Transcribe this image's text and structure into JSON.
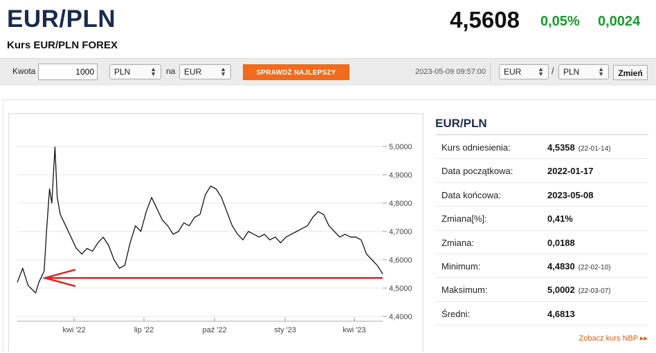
{
  "header": {
    "title": "EUR/PLN",
    "subtitle": "Kurs EUR/PLN FOREX",
    "price": "4,5608",
    "change_pct": "0,05%",
    "change_abs": "0,0024"
  },
  "toolbar": {
    "amount_label": "Kwota",
    "amount_value": "1000",
    "from_currency": "PLN",
    "na_label": "na",
    "to_currency": "EUR",
    "best_rate_button": "SPRAWDŹ NAJLEPSZY KURS",
    "timestamp": "2023-05-09 09:57:00",
    "pair_base": "EUR",
    "slash": "/",
    "pair_quote": "PLN",
    "change_button": "Zmień"
  },
  "stats": {
    "title": "EUR/PLN",
    "rows": [
      {
        "label": "Kurs odniesienia:",
        "value": "4,5358",
        "date": "(22-01-14)"
      },
      {
        "label": "Data początkowa:",
        "value": "2022-01-17",
        "date": ""
      },
      {
        "label": "Data końcowa:",
        "value": "2023-05-08",
        "date": ""
      },
      {
        "label": "Zmiana[%]:",
        "value": "0,41%",
        "date": ""
      },
      {
        "label": "Zmiana:",
        "value": "0,0188",
        "date": ""
      },
      {
        "label": "Minimum:",
        "value": "4,4830",
        "date": "(22-02-10)"
      },
      {
        "label": "Maksimum:",
        "value": "5,0002",
        "date": "(22-03-07)"
      },
      {
        "label": "Średni:",
        "value": "4,6813",
        "date": ""
      }
    ],
    "nbp_link": "Zobacz kurs NBP ▸▸"
  },
  "colors": {
    "title": "#1a2b4c",
    "positive": "#1a9a2a",
    "accent_button": "#f26a1b",
    "reference_line": "#e02020",
    "link": "#e05a10"
  },
  "chart_data": {
    "type": "line",
    "title": "",
    "xlabel": "",
    "ylabel": "",
    "ylim": [
      4.4,
      5.0
    ],
    "yticks": [
      "5,0000",
      "4,9000",
      "4,8000",
      "4,7000",
      "4,6000",
      "4,5000",
      "4,4000"
    ],
    "ytick_values": [
      5.0,
      4.9,
      4.8,
      4.7,
      4.6,
      4.5,
      4.4
    ],
    "xticks": [
      "kwi '22",
      "lip '22",
      "paź '22",
      "sty '23",
      "kwi '23"
    ],
    "xtick_dates": [
      "2022-04-01",
      "2022-07-01",
      "2022-10-01",
      "2023-01-01",
      "2023-04-01"
    ],
    "xlim_dates": [
      "2022-01-17",
      "2023-05-08"
    ],
    "reference_value": 4.5358,
    "series": [
      {
        "x": [
          "2022-01-17",
          "2022-01-24",
          "2022-01-31",
          "2022-02-07",
          "2022-02-10",
          "2022-02-14",
          "2022-02-21",
          "2022-02-24",
          "2022-02-28",
          "2022-03-03",
          "2022-03-07",
          "2022-03-10",
          "2022-03-14",
          "2022-03-21",
          "2022-03-28",
          "2022-04-04",
          "2022-04-11",
          "2022-04-18",
          "2022-04-25",
          "2022-05-02",
          "2022-05-09",
          "2022-05-16",
          "2022-05-23",
          "2022-05-30",
          "2022-06-06",
          "2022-06-13",
          "2022-06-20",
          "2022-06-27",
          "2022-07-04",
          "2022-07-11",
          "2022-07-18",
          "2022-07-25",
          "2022-08-01",
          "2022-08-08",
          "2022-08-15",
          "2022-08-22",
          "2022-08-29",
          "2022-09-05",
          "2022-09-12",
          "2022-09-19",
          "2022-09-26",
          "2022-10-03",
          "2022-10-10",
          "2022-10-17",
          "2022-10-24",
          "2022-10-31",
          "2022-11-07",
          "2022-11-14",
          "2022-11-21",
          "2022-11-28",
          "2022-12-05",
          "2022-12-12",
          "2022-12-19",
          "2022-12-26",
          "2023-01-02",
          "2023-01-09",
          "2023-01-16",
          "2023-01-23",
          "2023-01-30",
          "2023-02-06",
          "2023-02-13",
          "2023-02-20",
          "2023-02-27",
          "2023-03-06",
          "2023-03-13",
          "2023-03-20",
          "2023-03-27",
          "2023-04-03",
          "2023-04-10",
          "2023-04-17",
          "2023-04-24",
          "2023-05-01",
          "2023-05-08"
        ],
        "values": [
          4.52,
          4.57,
          4.51,
          4.49,
          4.483,
          4.52,
          4.56,
          4.7,
          4.85,
          4.8,
          4.998,
          4.82,
          4.76,
          4.72,
          4.68,
          4.64,
          4.62,
          4.64,
          4.63,
          4.66,
          4.68,
          4.65,
          4.6,
          4.57,
          4.58,
          4.66,
          4.72,
          4.7,
          4.77,
          4.82,
          4.78,
          4.74,
          4.72,
          4.69,
          4.7,
          4.73,
          4.72,
          4.75,
          4.76,
          4.83,
          4.86,
          4.85,
          4.82,
          4.77,
          4.72,
          4.69,
          4.67,
          4.7,
          4.69,
          4.68,
          4.69,
          4.67,
          4.68,
          4.66,
          4.68,
          4.69,
          4.7,
          4.71,
          4.72,
          4.75,
          4.77,
          4.76,
          4.72,
          4.7,
          4.68,
          4.69,
          4.68,
          4.68,
          4.67,
          4.62,
          4.6,
          4.58,
          4.55
        ]
      }
    ]
  }
}
